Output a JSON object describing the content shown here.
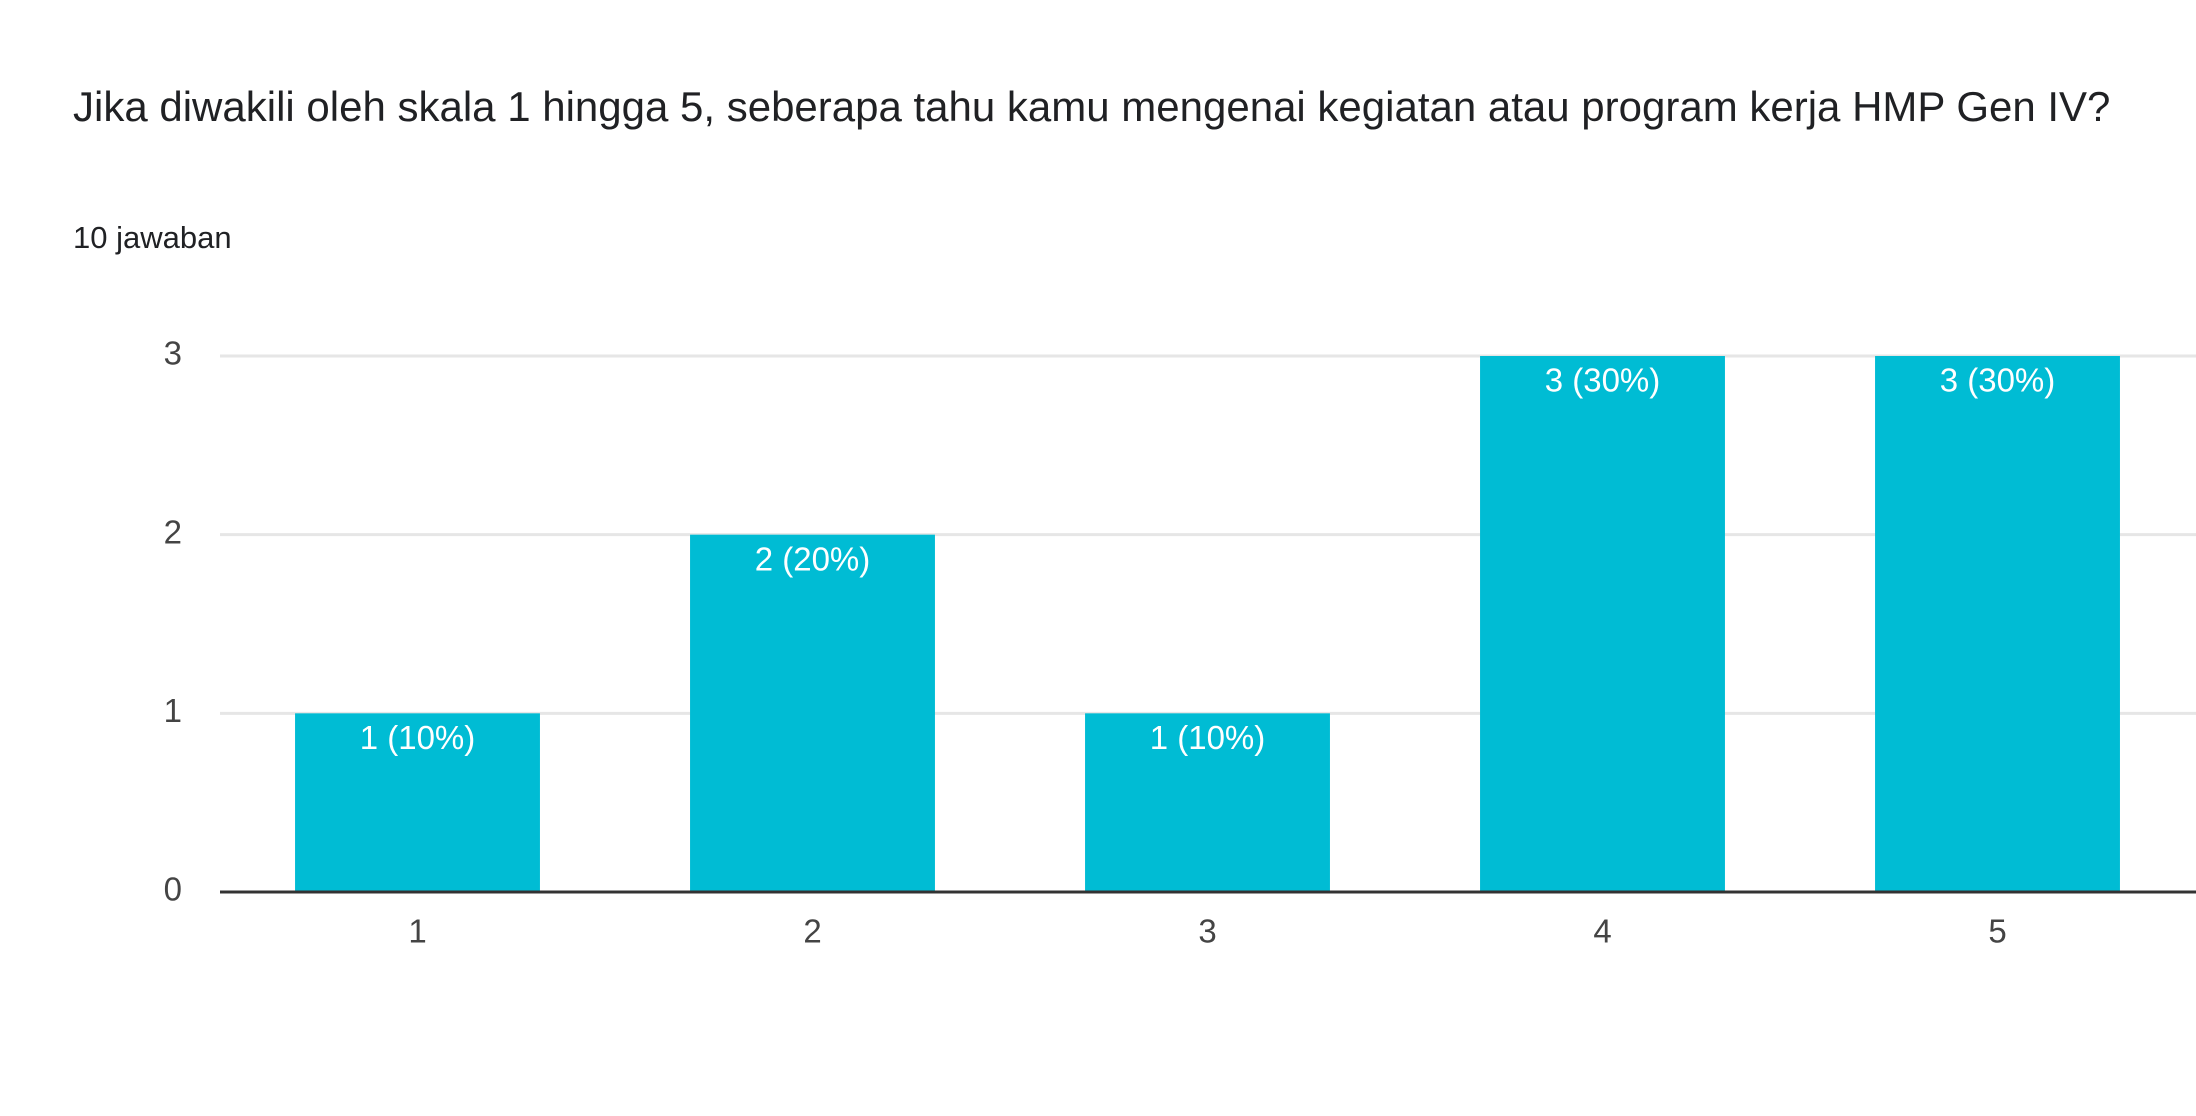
{
  "chart_data": {
    "type": "bar",
    "title": "Jika diwakili oleh skala 1 hingga 5, seberapa tahu kamu mengenai kegiatan atau program kerja HMP Gen IV?",
    "subtitle": "10 jawaban",
    "categories": [
      "1",
      "2",
      "3",
      "4",
      "5"
    ],
    "values": [
      1,
      2,
      1,
      3,
      3
    ],
    "value_labels": [
      "1 (10%)",
      "2 (20%)",
      "1 (10%)",
      "3 (30%)",
      "3 (30%)"
    ],
    "color": "#00bcd4",
    "ylim": [
      0,
      3
    ],
    "yticks": [
      0,
      1,
      2,
      3
    ],
    "grid": true
  }
}
